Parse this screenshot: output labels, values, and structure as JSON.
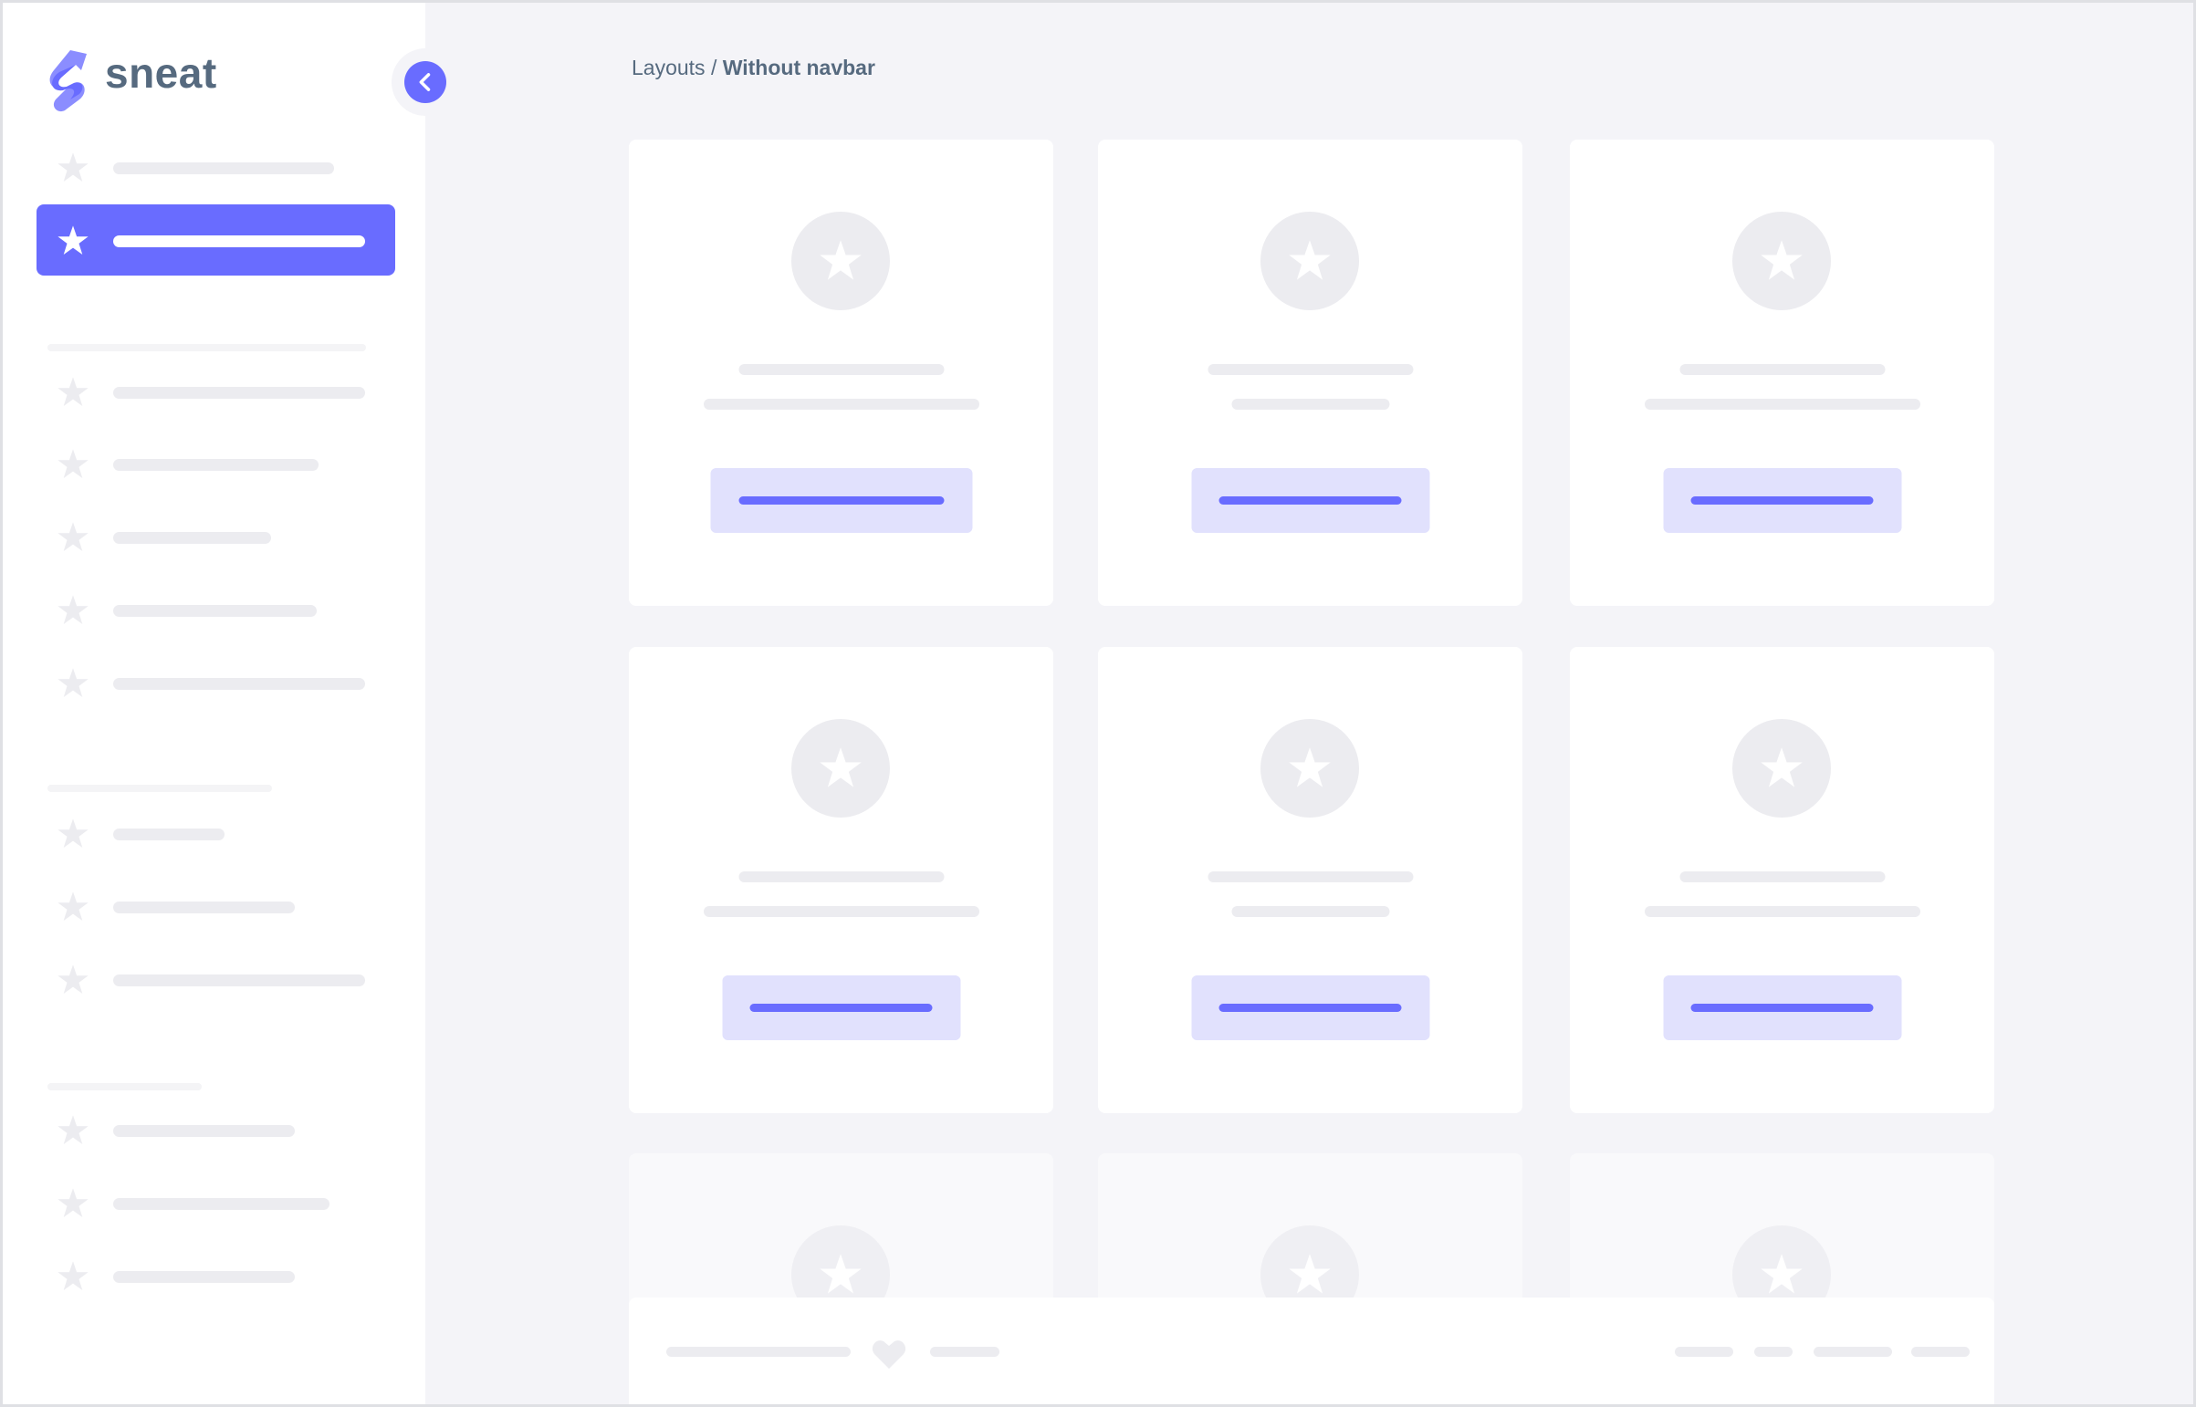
{
  "brand": {
    "name": "sneat",
    "accent": "#696cff",
    "text_color": "#566a7f"
  },
  "sidebar": {
    "toggle_icon": "chevron-left-icon",
    "active_index": 1
  },
  "breadcrumb": {
    "parent": "Layouts",
    "separator": " / ",
    "current": "Without navbar"
  },
  "colors": {
    "background": "#f4f4f8",
    "card": "#ffffff",
    "placeholder": "#ececf0",
    "button_bg": "#e1e1fd"
  },
  "footer": {
    "icon": "heart-icon"
  }
}
